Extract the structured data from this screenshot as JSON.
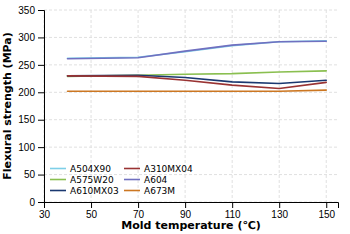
{
  "chart_data": {
    "type": "line",
    "xlabel": "Mold temperature (℃)",
    "ylabel": "Flexural strength (MPa)",
    "x": [
      40,
      70,
      90,
      110,
      130,
      150
    ],
    "series": [
      {
        "name": "A504X90",
        "color": "#7ecfe8",
        "values": [
          262,
          264,
          274,
          285,
          292,
          294
        ]
      },
      {
        "name": "A575W20",
        "color": "#8abf50",
        "values": [
          229,
          231,
          233,
          234,
          237,
          239
        ]
      },
      {
        "name": "A610MX03",
        "color": "#1a3870",
        "values": [
          230,
          231,
          227,
          219,
          216,
          222
        ]
      },
      {
        "name": "A310MX04",
        "color": "#993333",
        "values": [
          230,
          229,
          222,
          213,
          207,
          218
        ]
      },
      {
        "name": "A604",
        "color": "#7070c0",
        "values": [
          261,
          263,
          275,
          286,
          292,
          293
        ]
      },
      {
        "name": "A673M",
        "color": "#cc7722",
        "values": [
          202,
          202,
          202,
          202,
          202,
          204
        ]
      }
    ],
    "xlim": [
      30,
      155
    ],
    "ylim": [
      0,
      350
    ],
    "xticks": [
      30,
      50,
      70,
      90,
      110,
      130,
      150
    ],
    "yticks": [
      0,
      50,
      100,
      150,
      200,
      250,
      300,
      350
    ],
    "grid": true,
    "legend": "lower left"
  }
}
